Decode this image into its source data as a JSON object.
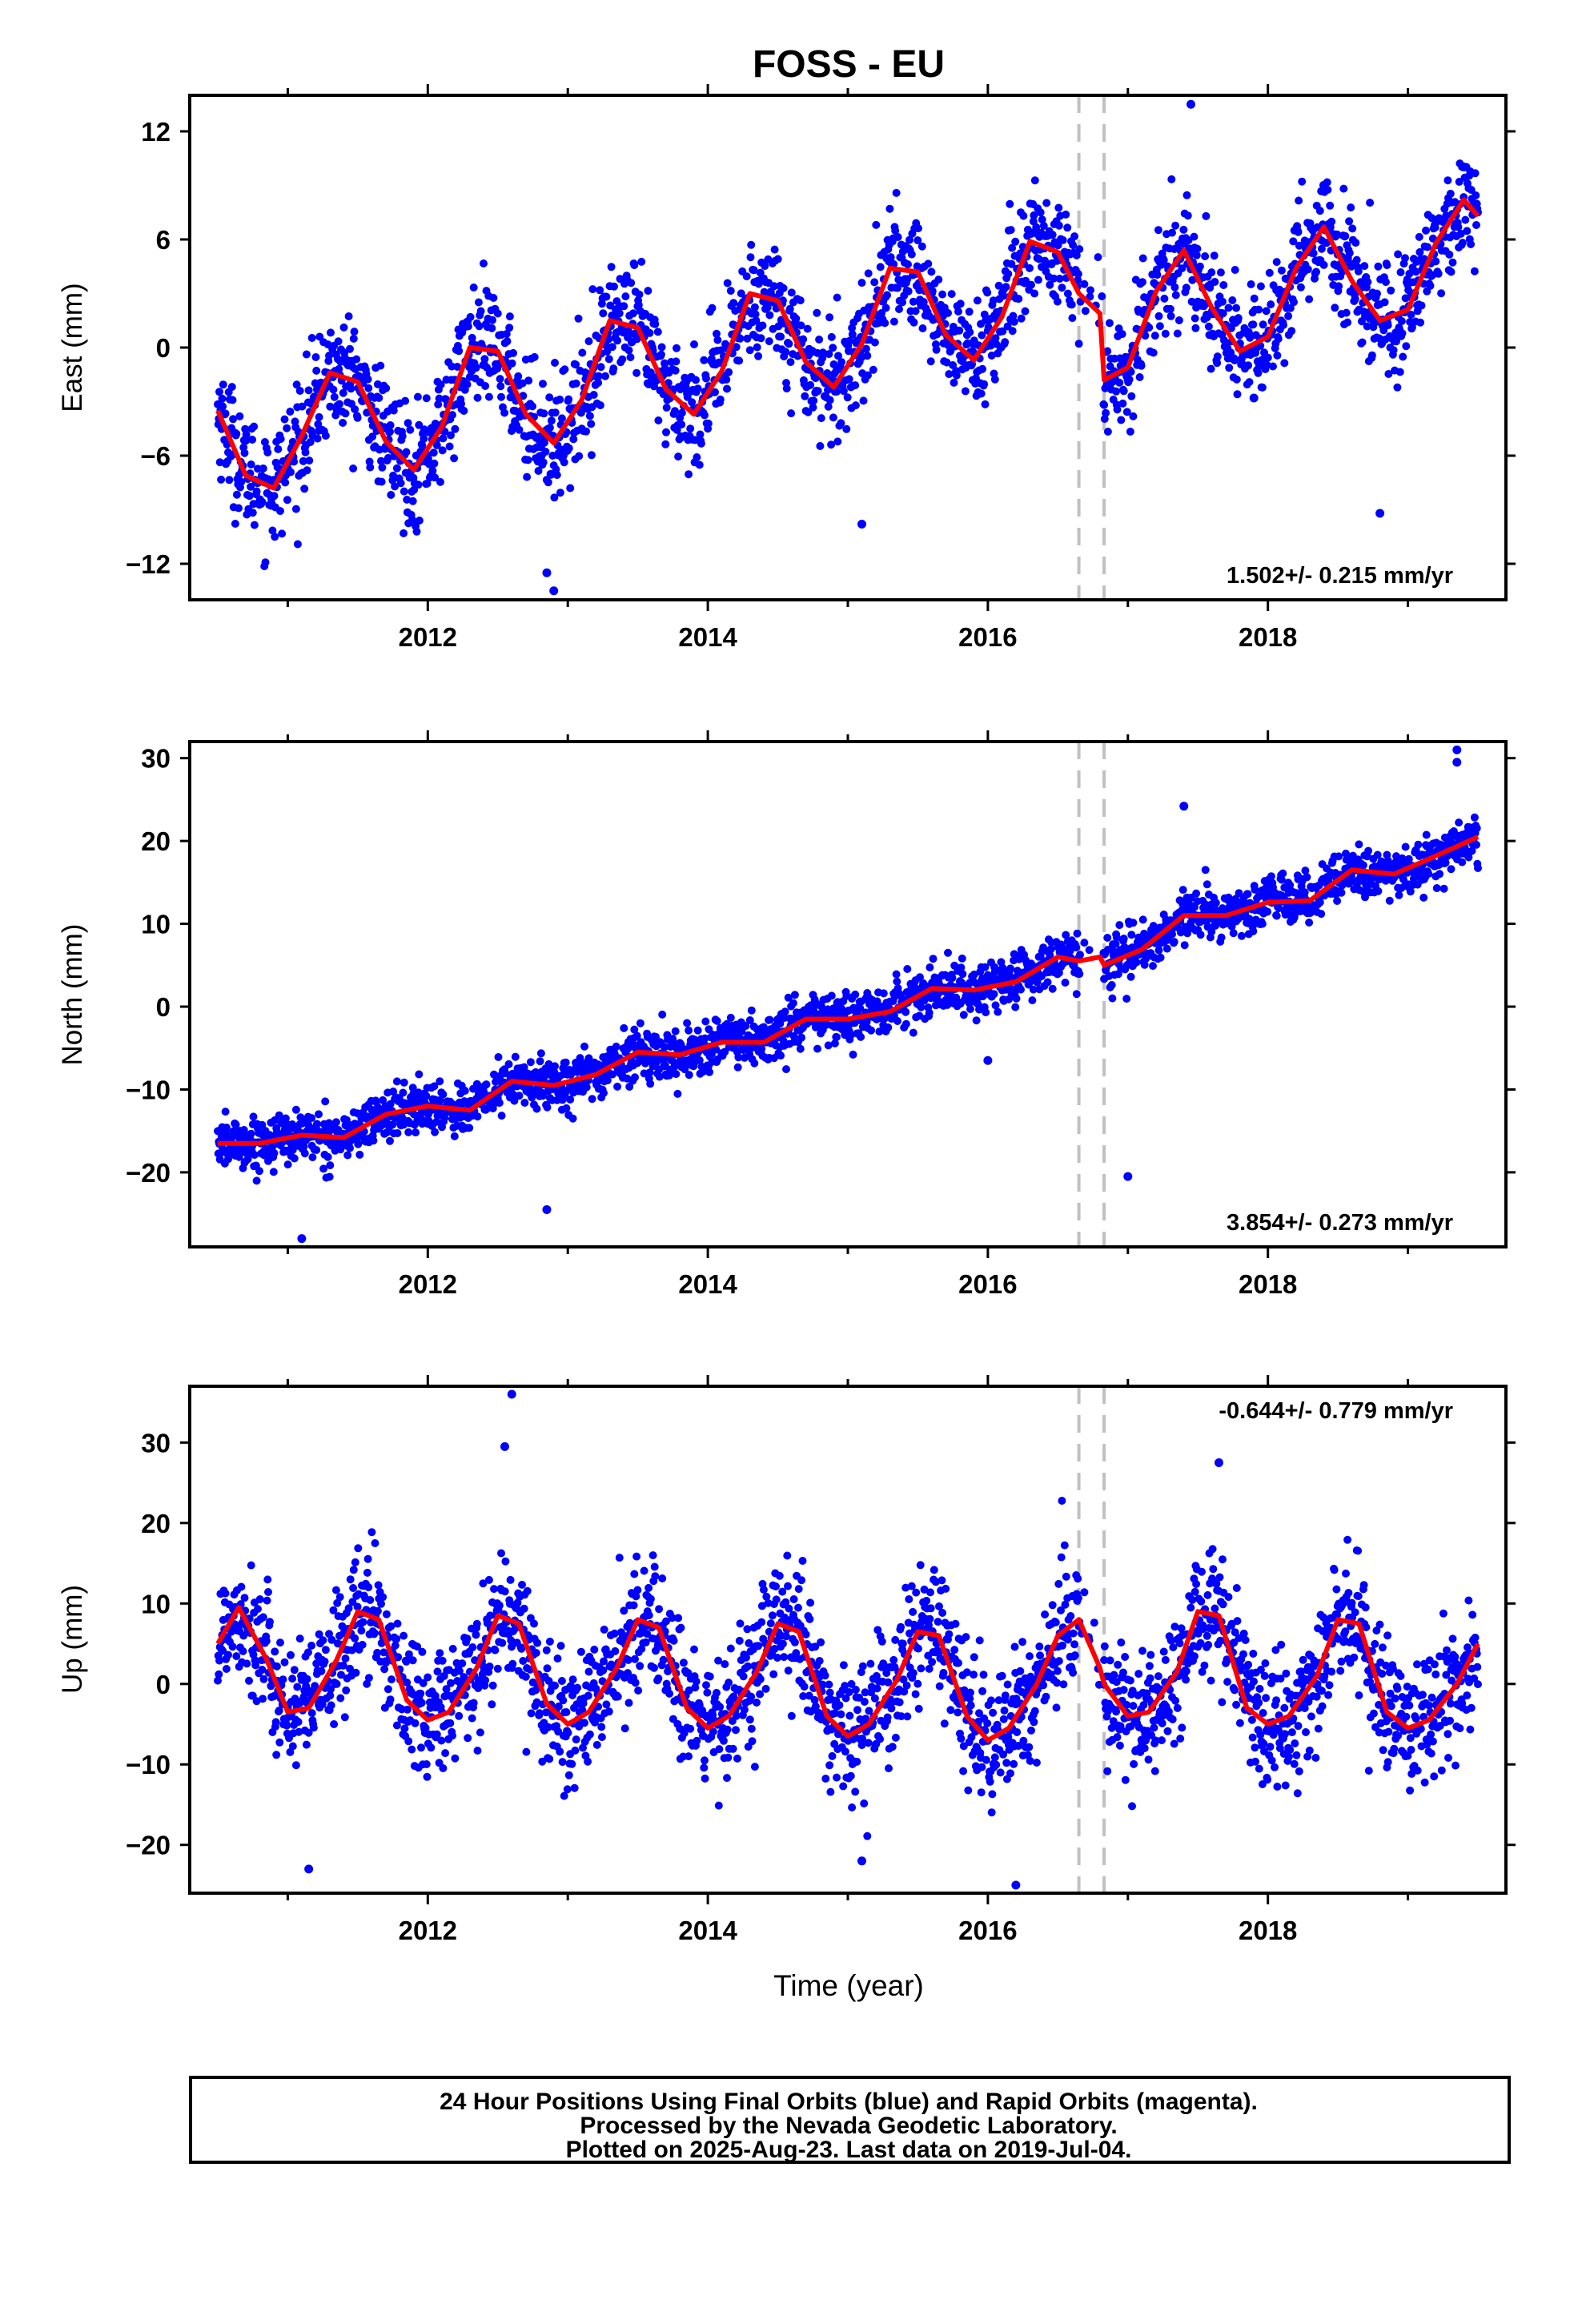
{
  "title": "FOSS - EU",
  "x_axis_label": "Time (year)",
  "caption": [
    "24 Hour Positions Using Final Orbits (blue) and Rapid Orbits (magenta).",
    "Processed by the Nevada Geodetic Laboratory.",
    "Plotted on 2025-Aug-23. Last data on 2019-Jul-04."
  ],
  "colors": {
    "data": "#0000ff",
    "model": "#ff0000",
    "steps": "#c0c0c0"
  },
  "chart_data": [
    {
      "type": "scatter",
      "component": "east",
      "ylabel": "East (mm)",
      "rate_text": "1.502+/- 0.215 mm/yr",
      "xlim": [
        2010.3,
        2019.7
      ],
      "ylim": [
        -14,
        14
      ],
      "x_ticks": [
        2012,
        2014,
        2016,
        2018
      ],
      "y_ticks": [
        -12,
        -6,
        0,
        6,
        12
      ],
      "step_epochs": [
        2016.65,
        2016.83
      ],
      "model": {
        "x": [
          2010.5,
          2010.7,
          2010.9,
          2011.1,
          2011.3,
          2011.5,
          2011.7,
          2011.9,
          2012.1,
          2012.3,
          2012.5,
          2012.7,
          2012.9,
          2013.1,
          2013.3,
          2013.5,
          2013.7,
          2013.9,
          2014.1,
          2014.3,
          2014.5,
          2014.7,
          2014.9,
          2015.1,
          2015.3,
          2015.5,
          2015.7,
          2015.9,
          2016.1,
          2016.3,
          2016.5,
          2016.65,
          2016.8,
          2016.83,
          2017.0,
          2017.2,
          2017.4,
          2017.6,
          2017.8,
          2018.0,
          2018.2,
          2018.4,
          2018.6,
          2018.8,
          2019.0,
          2019.2,
          2019.4,
          2019.5
        ],
        "y": [
          -3.5,
          -7.1,
          -7.8,
          -4.9,
          -1.4,
          -1.9,
          -5.2,
          -6.8,
          -4.4,
          0.0,
          -0.2,
          -3.7,
          -5.3,
          -2.9,
          1.5,
          1.1,
          -2.3,
          -3.7,
          -1.3,
          3.0,
          2.6,
          -0.8,
          -2.2,
          0.2,
          4.4,
          4.2,
          0.7,
          -0.7,
          1.7,
          5.9,
          5.3,
          3.0,
          1.9,
          -1.8,
          -1.1,
          3.1,
          5.4,
          2.2,
          -0.2,
          0.6,
          4.4,
          6.7,
          3.7,
          1.5,
          2.1,
          5.8,
          8.2,
          7.3
        ]
      },
      "outliers": {
        "x": [
          2012.85,
          2012.9,
          2015.1,
          2018.8,
          2017.9,
          2017.45
        ],
        "y": [
          -12.5,
          -13.5,
          -9.8,
          -9.2,
          -2.8,
          13.5
        ]
      },
      "annual_amplitude": 3.0,
      "noise": 1.6,
      "n_points": 2300,
      "x_start": 2010.5,
      "x_end": 2019.5,
      "gaps": [
        [
          2016.65,
          2016.83
        ]
      ]
    },
    {
      "type": "scatter",
      "component": "north",
      "ylabel": "North (mm)",
      "rate_text": "3.854+/- 0.273 mm/yr",
      "xlim": [
        2010.3,
        2019.7
      ],
      "ylim": [
        -29,
        32
      ],
      "x_ticks": [
        2012,
        2014,
        2016,
        2018
      ],
      "y_ticks": [
        -20,
        -10,
        0,
        10,
        20,
        30
      ],
      "step_epochs": [
        2016.65,
        2016.83
      ],
      "model": {
        "x": [
          2010.5,
          2010.8,
          2011.1,
          2011.4,
          2011.7,
          2012.0,
          2012.3,
          2012.6,
          2012.9,
          2013.2,
          2013.5,
          2013.8,
          2014.1,
          2014.4,
          2014.7,
          2015.0,
          2015.3,
          2015.6,
          2015.9,
          2016.2,
          2016.5,
          2016.65,
          2016.8,
          2016.83,
          2017.1,
          2017.4,
          2017.7,
          2018.0,
          2018.3,
          2018.6,
          2018.9,
          2019.2,
          2019.5
        ],
        "y": [
          -16.5,
          -16.5,
          -15.5,
          -15.8,
          -13.0,
          -12.0,
          -12.5,
          -9.0,
          -9.5,
          -8.2,
          -5.5,
          -5.8,
          -4.3,
          -4.3,
          -1.5,
          -1.5,
          -0.6,
          2.2,
          2.0,
          3.0,
          6.0,
          5.5,
          6.0,
          5.0,
          6.9,
          11.0,
          11.0,
          12.6,
          12.8,
          16.5,
          16.0,
          18.2,
          20.5
        ]
      },
      "outliers": {
        "x": [
          2011.1,
          2012.85,
          2017.0,
          2017.4,
          2019.35,
          2019.35,
          2016.0
        ],
        "y": [
          -28.0,
          -24.5,
          -20.5,
          24.2,
          31.0,
          29.5,
          -6.5
        ]
      },
      "annual_amplitude": 0.7,
      "noise": 1.5,
      "n_points": 2300,
      "x_start": 2010.5,
      "x_end": 2019.5,
      "gaps": [
        [
          2016.65,
          2016.83
        ]
      ]
    },
    {
      "type": "scatter",
      "component": "up",
      "ylabel": "Up (mm)",
      "rate_text": "-0.644+/- 0.779 mm/yr",
      "xlim": [
        2010.3,
        2019.7
      ],
      "ylim": [
        -26,
        37
      ],
      "x_ticks": [
        2012,
        2014,
        2016,
        2018
      ],
      "y_ticks": [
        -20,
        -10,
        0,
        10,
        20,
        30
      ],
      "step_epochs": [
        2016.65,
        2016.83
      ],
      "model": {
        "x": [
          2010.5,
          2010.65,
          2010.85,
          2011.0,
          2011.15,
          2011.35,
          2011.5,
          2011.65,
          2011.85,
          2012.0,
          2012.15,
          2012.35,
          2012.5,
          2012.65,
          2012.85,
          2013.0,
          2013.15,
          2013.35,
          2013.5,
          2013.65,
          2013.85,
          2014.0,
          2014.15,
          2014.35,
          2014.5,
          2014.65,
          2014.85,
          2015.0,
          2015.15,
          2015.35,
          2015.5,
          2015.65,
          2015.85,
          2016.0,
          2016.15,
          2016.35,
          2016.5,
          2016.65,
          2016.8,
          2016.83,
          2017.0,
          2017.15,
          2017.35,
          2017.5,
          2017.65,
          2017.85,
          2018.0,
          2018.15,
          2018.35,
          2018.5,
          2018.65,
          2018.85,
          2019.0,
          2019.15,
          2019.35,
          2019.5
        ],
        "y": [
          5.0,
          9.5,
          3.0,
          -3.5,
          -3.0,
          3.0,
          9.0,
          8.0,
          -2.0,
          -4.5,
          -3.5,
          2.0,
          8.5,
          7.5,
          -2.5,
          -5.0,
          -3.5,
          2.0,
          8.0,
          7.0,
          -3.0,
          -5.5,
          -4.0,
          1.5,
          7.5,
          6.5,
          -4.0,
          -6.5,
          -5.0,
          0.5,
          6.5,
          6.0,
          -4.0,
          -7.0,
          -5.5,
          0.0,
          6.0,
          8.0,
          2.0,
          0.0,
          -4.0,
          -3.5,
          1.5,
          9.0,
          8.5,
          -3.0,
          -5.0,
          -4.0,
          1.0,
          8.0,
          7.5,
          -3.5,
          -5.5,
          -4.5,
          0.0,
          5.0
        ]
      },
      "outliers": {
        "x": [
          2012.6,
          2012.55,
          2011.15,
          2016.2,
          2015.1,
          2017.65
        ],
        "y": [
          36.0,
          29.5,
          -23.0,
          -25.0,
          -22.0,
          27.5
        ]
      },
      "annual_amplitude": 7.0,
      "noise": 4.0,
      "n_points": 2300,
      "x_start": 2010.5,
      "x_end": 2019.5,
      "gaps": [
        [
          2016.65,
          2016.83
        ]
      ]
    }
  ]
}
